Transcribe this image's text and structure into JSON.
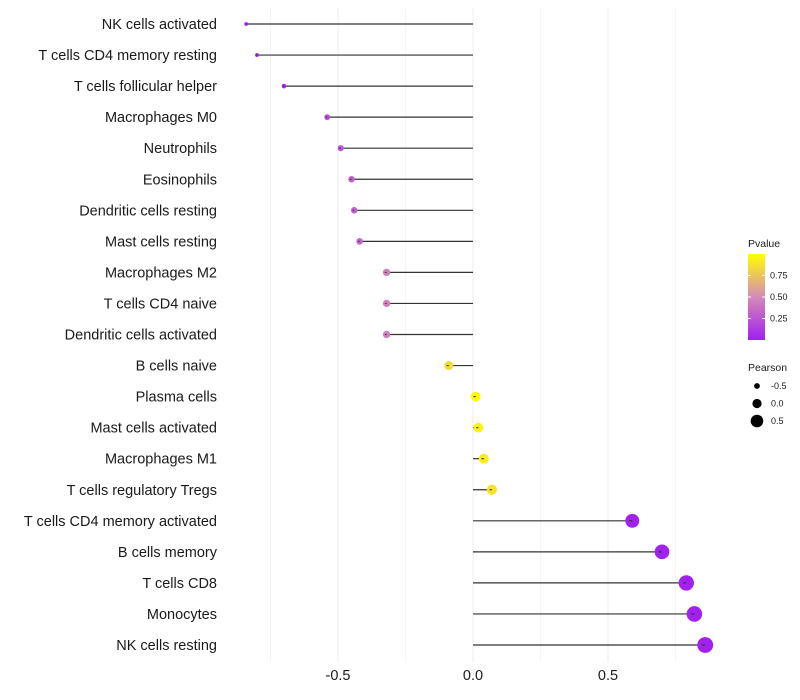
{
  "chart_data": {
    "type": "lollipop",
    "title": "",
    "xlabel": "",
    "ylabel": "",
    "xlim": [
      -0.98,
      1.0
    ],
    "x_ticks": [
      -0.5,
      0.0,
      0.5
    ],
    "x_tick_labels": [
      "-0.5",
      "0.0",
      "0.5"
    ],
    "grid": true,
    "categories": [
      "NK cells activated",
      "T cells CD4 memory resting",
      "T cells follicular helper",
      "Macrophages M0",
      "Neutrophils",
      "Eosinophils",
      "Dendritic cells resting",
      "Mast cells resting",
      "Macrophages M2",
      "T cells CD4 naive",
      "Dendritic cells activated",
      "B cells naive",
      "Plasma cells",
      "Mast cells activated",
      "Macrophages M1",
      "T cells regulatory  Tregs ",
      "T cells CD4 memory activated",
      "B cells memory",
      "T cells CD8",
      "Monocytes",
      "NK cells resting"
    ],
    "pearson": [
      -0.84,
      -0.8,
      -0.7,
      -0.54,
      -0.49,
      -0.45,
      -0.44,
      -0.42,
      -0.32,
      -0.32,
      -0.32,
      -0.09,
      0.01,
      0.02,
      0.04,
      0.07,
      0.59,
      0.7,
      0.79,
      0.82,
      0.86
    ],
    "pvalue": [
      0.01,
      0.02,
      0.05,
      0.2,
      0.25,
      0.3,
      0.3,
      0.33,
      0.45,
      0.45,
      0.45,
      0.85,
      0.98,
      0.95,
      0.92,
      0.88,
      0.01,
      0.01,
      0.01,
      0.01,
      0.01
    ],
    "legend_pvalue": {
      "title": "Pvalue",
      "ticks": [
        0.75,
        0.5,
        0.25
      ],
      "tick_labels": [
        "0.75",
        "0.50",
        "0.25"
      ],
      "range": [
        0.0,
        1.0
      ],
      "color_low": "#a020f0",
      "color_high": "#ffff00",
      "position": "right"
    },
    "legend_pearson": {
      "title": "Pearson",
      "values": [
        -0.5,
        0.0,
        0.5
      ],
      "labels": [
        "-0.5",
        "0.0",
        "0.5"
      ],
      "position": "right"
    }
  }
}
